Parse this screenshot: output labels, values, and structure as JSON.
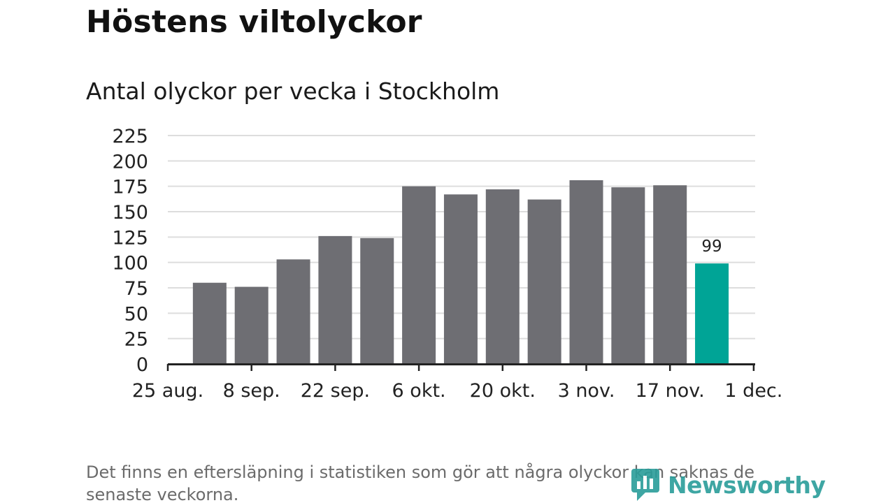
{
  "title": "Höstens viltolyckor",
  "chart_data": {
    "type": "bar",
    "title": "Antal olyckor per vecka i Stockholm",
    "xlabel": "",
    "ylabel": "",
    "ylim": [
      0,
      225
    ],
    "yticks": [
      "0",
      "25",
      "50",
      "75",
      "100",
      "125",
      "150",
      "175",
      "200",
      "225"
    ],
    "ytick_values": [
      0,
      25,
      50,
      75,
      100,
      125,
      150,
      175,
      200,
      225
    ],
    "xticks": [
      "25 aug.",
      "8 sep.",
      "22 sep.",
      "6 okt.",
      "20 okt.",
      "3 nov.",
      "17 nov.",
      "1 dec."
    ],
    "values": [
      80,
      76,
      103,
      126,
      124,
      175,
      167,
      172,
      162,
      181,
      174,
      176,
      99
    ],
    "highlight_index": 12,
    "highlight_label": "99",
    "grid": true,
    "colors": {
      "bar": "#6e6e73",
      "highlight": "#00a496",
      "grid": "#dddddd",
      "axis": "#222222"
    }
  },
  "footnote": "Det finns en eftersläpning i statistiken som gör att några olyckor kan saknas de senaste veckorna.",
  "logo": {
    "text": "Newsworthy",
    "icon": "newsworthy-logo-icon",
    "color": "#2a9d9a"
  }
}
